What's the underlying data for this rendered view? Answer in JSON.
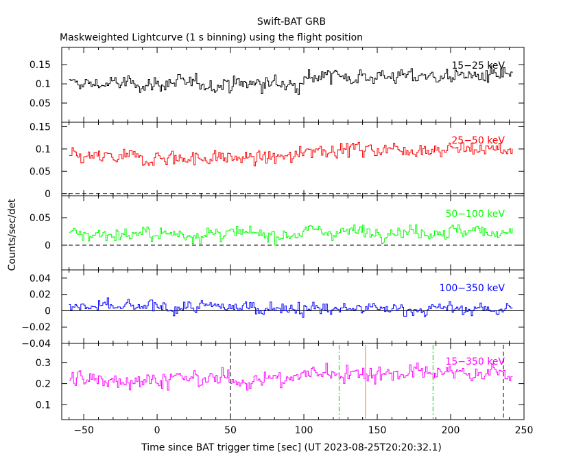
{
  "figure": {
    "title": "Swift-BAT GRB",
    "subtitle": "Maskweighted Lightcurve (1 s binning) using the flight position",
    "xlabel": "Time since BAT trigger time [sec] (UT 2023-08-25T20:20:32.1)",
    "ylabel": "Counts/sec/det"
  },
  "chart_data": {
    "type": "line",
    "xlim": [
      -65,
      250
    ],
    "x_ticks": [
      -50,
      0,
      50,
      100,
      150,
      200,
      250
    ],
    "x_ticks_labels": [
      "−50",
      "0",
      "50",
      "100",
      "150",
      "200",
      "250"
    ],
    "time_range": [
      -60,
      242
    ],
    "panels": [
      {
        "name": "15-25 keV",
        "label": "15−25 keV",
        "color": "#000000",
        "ylim": [
          0.0,
          0.195
        ],
        "yticks": [
          0.05,
          0.1,
          0.15
        ],
        "ytick_labels": [
          "0.05",
          "0.1",
          "0.15"
        ],
        "zero_line": false,
        "zero_dashed": false,
        "mean_before": 0.1,
        "mean_after": 0.12,
        "amplitude": 0.03,
        "spike_after": 97
      },
      {
        "name": "25-50 keV",
        "label": "25−50 keV",
        "color": "#ff0000",
        "ylim": [
          -0.005,
          0.16
        ],
        "yticks": [
          0,
          0.05,
          0.1,
          0.15
        ],
        "ytick_labels": [
          "0",
          "0.05",
          "0.1",
          "0.15"
        ],
        "zero_line": true,
        "zero_dashed": true,
        "mean_before": 0.08,
        "mean_after": 0.1,
        "amplitude": 0.025,
        "spike_after": 97
      },
      {
        "name": "50-100 keV",
        "label": "50−100 keV",
        "color": "#00ff00",
        "ylim": [
          -0.045,
          0.09
        ],
        "yticks": [
          0,
          0.05
        ],
        "ytick_labels": [
          "0",
          "0.05"
        ],
        "zero_line": true,
        "zero_dashed": true,
        "mean_before": 0.02,
        "mean_after": 0.025,
        "amplitude": 0.018,
        "spike_after": 97
      },
      {
        "name": "100-350 keV",
        "label": "100−350 keV",
        "color": "#0000ff",
        "ylim": [
          -0.04,
          0.05
        ],
        "yticks": [
          -0.04,
          -0.02,
          0,
          0.02,
          0.04
        ],
        "ytick_labels": [
          "−0.04",
          "−0.02",
          "0",
          "0.02",
          "0.04"
        ],
        "zero_line": true,
        "zero_dashed": false,
        "mean_before": 0.004,
        "mean_after": 0.002,
        "amplitude": 0.012,
        "spike_after": 97
      },
      {
        "name": "15-350 keV",
        "label": "15−350 keV",
        "color": "#ff00ff",
        "ylim": [
          0.03,
          0.39
        ],
        "yticks": [
          0.1,
          0.2,
          0.3
        ],
        "ytick_labels": [
          "0.1",
          "0.2",
          "0.3"
        ],
        "zero_line": false,
        "zero_dashed": false,
        "mean_before": 0.22,
        "mean_after": 0.25,
        "amplitude": 0.06,
        "spike_after": 97
      }
    ],
    "markers": [
      {
        "x": 50,
        "color": "#000000",
        "style": "dashed"
      },
      {
        "x": 124,
        "color": "#00cc00",
        "style": "dashdot"
      },
      {
        "x": 142,
        "color": "#ff8000",
        "style": "solid"
      },
      {
        "x": 188,
        "color": "#00cc00",
        "style": "dashdot"
      },
      {
        "x": 236,
        "color": "#000000",
        "style": "dashed"
      }
    ]
  }
}
